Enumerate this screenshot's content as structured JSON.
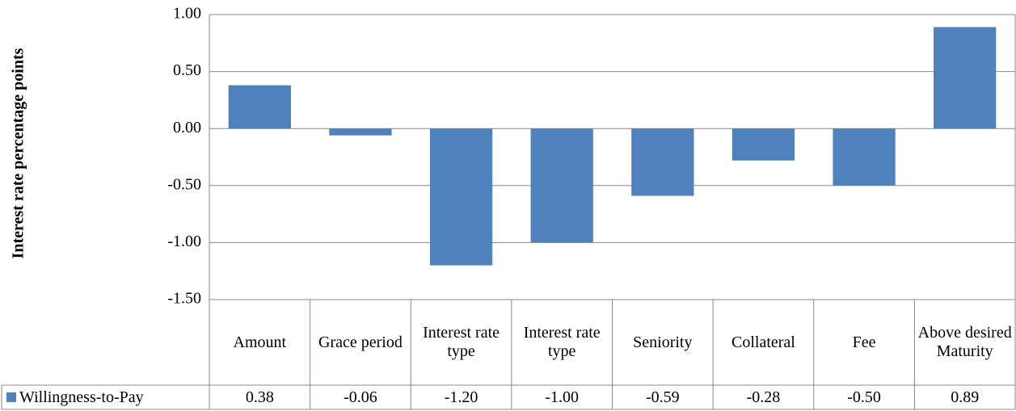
{
  "chart_data": {
    "type": "bar",
    "y_label": "Interest rate percentage points",
    "categories": [
      "Amount",
      "Grace period",
      "Interest rate type",
      "Interest rate type",
      "Seniority",
      "Collateral",
      "Fee",
      "Above desired Maturity"
    ],
    "series": [
      {
        "name": "Willingness-to-Pay",
        "color": "#4f81bd",
        "values": [
          0.38,
          -0.06,
          -1.2,
          -1.0,
          -0.59,
          -0.28,
          -0.5,
          0.89
        ],
        "value_labels": [
          "0.38",
          "-0.06",
          "-1.20",
          "-1.00",
          "-0.59",
          "-0.28",
          "-0.50",
          "0.89"
        ]
      }
    ],
    "ylim": [
      -1.5,
      1
    ],
    "yticks": [
      {
        "value": -1.5,
        "label": "-1.50"
      },
      {
        "value": -1,
        "label": "-1.00"
      },
      {
        "value": -0.5,
        "label": "-0.50"
      },
      {
        "value": 0,
        "label": "0.00"
      },
      {
        "value": 0.5,
        "label": "0.50"
      },
      {
        "value": 1,
        "label": "1.00"
      }
    ],
    "grid": true
  }
}
